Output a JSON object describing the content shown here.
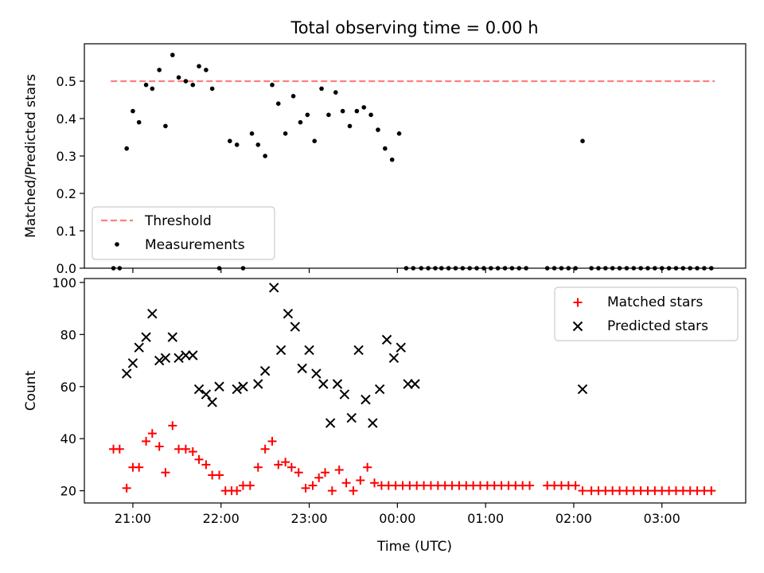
{
  "figure": {
    "title": "Total observing time = 0.00 h",
    "xlabel": "Time (UTC)",
    "x_ticks": [
      "21:00",
      "22:00",
      "23:00",
      "00:00",
      "01:00",
      "02:00",
      "03:00"
    ],
    "x_tick_hours": [
      21,
      22,
      23,
      24,
      25,
      26,
      27
    ],
    "xlim_hours": [
      20.45,
      27.95
    ]
  },
  "colors": {
    "threshold": "#ff7f7f",
    "measurements": "#000000",
    "matched": "#ff0000",
    "predicted": "#000000"
  },
  "chart_data": [
    {
      "type": "scatter",
      "ylabel": "Matched/Predicted stars",
      "ylim": [
        0,
        0.6
      ],
      "y_ticks": [
        "0.0",
        "0.1",
        "0.2",
        "0.3",
        "0.4",
        "0.5"
      ],
      "y_tick_values": [
        0,
        0.1,
        0.2,
        0.3,
        0.4,
        0.5
      ],
      "legend_position": "bottom-left",
      "threshold": {
        "name": "Threshold",
        "value": 0.5,
        "x_range": [
          20.75,
          27.6
        ]
      },
      "series": [
        {
          "name": "Measurements",
          "marker": "dot",
          "x": [
            20.78,
            20.85,
            20.93,
            21.0,
            21.07,
            21.15,
            21.22,
            21.3,
            21.37,
            21.45,
            21.52,
            21.6,
            21.68,
            21.75,
            21.83,
            21.9,
            21.98,
            22.1,
            22.18,
            22.25,
            22.35,
            22.42,
            22.5,
            22.58,
            22.65,
            22.73,
            22.82,
            22.9,
            22.98,
            23.06,
            23.14,
            23.22,
            23.3,
            23.38,
            23.46,
            23.54,
            23.62,
            23.7,
            23.78,
            23.86,
            23.94,
            24.02,
            24.1,
            24.18,
            24.27,
            24.35,
            24.43,
            24.5,
            24.58,
            24.66,
            24.74,
            24.82,
            24.9,
            24.98,
            25.06,
            25.14,
            25.22,
            25.3,
            25.38,
            25.46,
            25.7,
            25.78,
            25.86,
            25.94,
            26.02,
            26.1,
            26.2,
            26.28,
            26.36,
            26.44,
            26.52,
            26.6,
            26.68,
            26.76,
            26.84,
            26.92,
            27.0,
            27.08,
            27.16,
            27.24,
            27.32,
            27.4,
            27.48,
            27.56
          ],
          "y": [
            0.0,
            0.0,
            0.32,
            0.42,
            0.39,
            0.49,
            0.48,
            0.53,
            0.38,
            0.57,
            0.51,
            0.5,
            0.49,
            0.54,
            0.53,
            0.48,
            0.0,
            0.34,
            0.33,
            0.0,
            0.36,
            0.33,
            0.3,
            0.49,
            0.44,
            0.36,
            0.46,
            0.39,
            0.41,
            0.34,
            0.48,
            0.41,
            0.47,
            0.42,
            0.38,
            0.42,
            0.43,
            0.41,
            0.37,
            0.32,
            0.29,
            0.36,
            0.0,
            0.0,
            0.0,
            0.0,
            0.0,
            0.0,
            0.0,
            0.0,
            0.0,
            0.0,
            0.0,
            0.0,
            0.0,
            0.0,
            0.0,
            0.0,
            0.0,
            0.0,
            0.0,
            0.0,
            0.0,
            0.0,
            0.0,
            0.34,
            0.0,
            0.0,
            0.0,
            0.0,
            0.0,
            0.0,
            0.0,
            0.0,
            0.0,
            0.0,
            0.0,
            0.0,
            0.0,
            0.0,
            0.0,
            0.0,
            0.0,
            0.0
          ]
        }
      ]
    },
    {
      "type": "scatter",
      "ylabel": "Count",
      "ylim": [
        15.3,
        101.5
      ],
      "y_ticks": [
        "20",
        "40",
        "60",
        "80",
        "100"
      ],
      "y_tick_values": [
        20,
        40,
        60,
        80,
        100
      ],
      "legend_position": "top-right",
      "series": [
        {
          "name": "Matched stars",
          "marker": "plus",
          "x": [
            20.78,
            20.85,
            20.93,
            21.0,
            21.07,
            21.15,
            21.22,
            21.3,
            21.37,
            21.45,
            21.52,
            21.6,
            21.68,
            21.75,
            21.83,
            21.9,
            21.98,
            22.05,
            22.12,
            22.18,
            22.25,
            22.33,
            22.42,
            22.5,
            22.58,
            22.65,
            22.73,
            22.8,
            22.88,
            22.96,
            23.04,
            23.11,
            23.18,
            23.26,
            23.34,
            23.42,
            23.5,
            23.58,
            23.66,
            23.74,
            23.82,
            23.9,
            23.98,
            24.06,
            24.14,
            24.22,
            24.3,
            24.38,
            24.46,
            24.54,
            24.62,
            24.7,
            24.78,
            24.86,
            24.94,
            25.02,
            25.1,
            25.18,
            25.26,
            25.34,
            25.42,
            25.5,
            25.7,
            25.78,
            25.86,
            25.94,
            26.02,
            26.1,
            26.2,
            26.28,
            26.36,
            26.44,
            26.52,
            26.6,
            26.68,
            26.76,
            26.84,
            26.92,
            27.0,
            27.08,
            27.16,
            27.24,
            27.32,
            27.4,
            27.48,
            27.56
          ],
          "y": [
            36,
            36,
            21,
            29,
            29,
            39,
            42,
            37,
            27,
            45,
            36,
            36,
            35,
            32,
            30,
            26,
            26,
            20,
            20,
            20,
            22,
            22,
            29,
            36,
            39,
            30,
            31,
            29,
            27,
            21,
            22,
            25,
            27,
            20,
            28,
            23,
            20,
            24,
            29,
            23,
            22,
            22,
            22,
            22,
            22,
            22,
            22,
            22,
            22,
            22,
            22,
            22,
            22,
            22,
            22,
            22,
            22,
            22,
            22,
            22,
            22,
            22,
            22,
            22,
            22,
            22,
            22,
            20,
            20,
            20,
            20,
            20,
            20,
            20,
            20,
            20,
            20,
            20,
            20,
            20,
            20,
            20,
            20,
            20,
            20,
            20
          ]
        },
        {
          "name": "Predicted stars",
          "marker": "x",
          "x": [
            20.93,
            21.0,
            21.07,
            21.15,
            21.22,
            21.3,
            21.37,
            21.45,
            21.52,
            21.6,
            21.68,
            21.75,
            21.83,
            21.9,
            21.98,
            22.18,
            22.25,
            22.42,
            22.5,
            22.6,
            22.68,
            22.76,
            22.84,
            22.92,
            23.0,
            23.08,
            23.16,
            23.24,
            23.32,
            23.4,
            23.48,
            23.56,
            23.64,
            23.72,
            23.8,
            23.88,
            23.96,
            24.04,
            24.12,
            24.2,
            26.1
          ],
          "y": [
            65,
            69,
            75,
            79,
            88,
            70,
            71,
            79,
            71,
            72,
            72,
            59,
            57,
            54,
            60,
            59,
            60,
            61,
            66,
            98,
            74,
            88,
            83,
            67,
            74,
            65,
            61,
            46,
            61,
            57,
            48,
            74,
            55,
            46,
            59,
            78,
            71,
            75,
            61,
            61,
            59
          ]
        }
      ]
    }
  ]
}
